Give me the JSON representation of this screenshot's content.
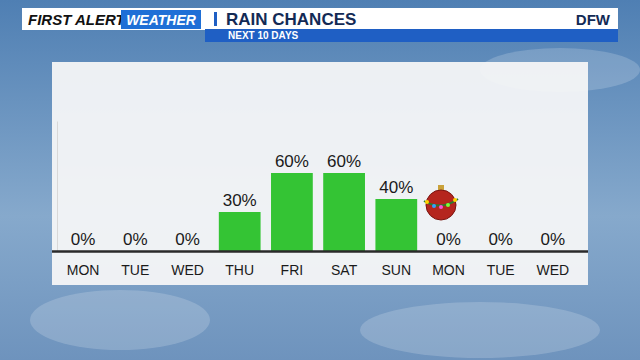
{
  "chart_data": {
    "type": "bar",
    "title": "RAIN CHANCES",
    "subtitle": "NEXT 10 DAYS",
    "annotations": [
      "FIRST ALERT",
      "WEATHER",
      "DFW"
    ],
    "categories": [
      "MON",
      "TUE",
      "WED",
      "THU",
      "FRI",
      "SAT",
      "SUN",
      "MON",
      "TUE",
      "WED"
    ],
    "values": [
      0,
      0,
      0,
      30,
      60,
      60,
      40,
      0,
      0,
      0
    ],
    "value_labels": [
      "0%",
      "0%",
      "0%",
      "30%",
      "60%",
      "60%",
      "40%",
      "0%",
      "0%",
      "0%"
    ],
    "color": "#34c434",
    "ylim": [
      0,
      100
    ],
    "data_labels": true,
    "tick_labels": "x",
    "grid": false
  }
}
